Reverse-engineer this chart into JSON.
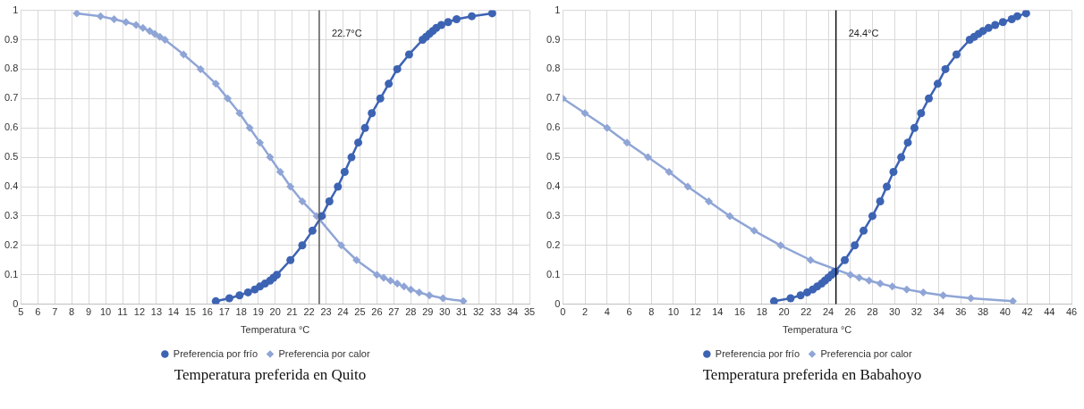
{
  "chart_data": [
    {
      "type": "line",
      "title": "Temperatura preferida en Quito",
      "xlabel": "Temperatura °C",
      "xlim": [
        5,
        35
      ],
      "xticks": [
        5,
        6,
        7,
        8,
        9,
        10,
        11,
        12,
        13,
        14,
        15,
        16,
        17,
        18,
        19,
        20,
        21,
        22,
        23,
        24,
        25,
        26,
        27,
        28,
        29,
        30,
        31,
        32,
        33,
        34,
        35
      ],
      "ylim": [
        0,
        1
      ],
      "yticks": [
        0,
        0.1,
        0.2,
        0.3,
        0.4,
        0.5,
        0.6,
        0.7,
        0.8,
        0.9,
        1
      ],
      "grid": true,
      "legend": "bottom",
      "series": [
        {
          "name": "Preferencia por frío",
          "color": "#3d63b3",
          "marker": "circle",
          "x": [
            16.5,
            17.3,
            17.9,
            18.4,
            18.8,
            19.1,
            19.4,
            19.7,
            19.9,
            20.1,
            20.9,
            21.6,
            22.2,
            22.75,
            23.2,
            23.7,
            24.1,
            24.5,
            24.9,
            25.3,
            25.7,
            26.2,
            26.7,
            27.2,
            27.9,
            28.7,
            28.9,
            29.1,
            29.3,
            29.5,
            29.8,
            30.2,
            30.7,
            31.6,
            32.8
          ],
          "values": [
            0.01,
            0.02,
            0.03,
            0.04,
            0.05,
            0.06,
            0.07,
            0.08,
            0.09,
            0.1,
            0.15,
            0.2,
            0.25,
            0.3,
            0.35,
            0.4,
            0.45,
            0.5,
            0.55,
            0.6,
            0.65,
            0.7,
            0.75,
            0.8,
            0.85,
            0.9,
            0.91,
            0.92,
            0.93,
            0.94,
            0.95,
            0.96,
            0.97,
            0.98,
            0.99
          ]
        },
        {
          "name": "Preferencia por calor",
          "color": "#8fa5d6",
          "marker": "diamond",
          "x": [
            8.3,
            9.7,
            10.5,
            11.2,
            11.8,
            12.2,
            12.6,
            12.9,
            13.2,
            13.5,
            14.6,
            15.6,
            16.5,
            17.2,
            17.9,
            18.5,
            19.1,
            19.7,
            20.3,
            20.9,
            21.6,
            22.45,
            23.9,
            24.8,
            26,
            26.4,
            26.8,
            27.2,
            27.6,
            28,
            28.5,
            29.1,
            29.9,
            31.1
          ],
          "values": [
            0.99,
            0.98,
            0.97,
            0.96,
            0.95,
            0.94,
            0.93,
            0.92,
            0.91,
            0.9,
            0.85,
            0.8,
            0.75,
            0.7,
            0.65,
            0.6,
            0.55,
            0.5,
            0.45,
            0.4,
            0.35,
            0.3,
            0.2,
            0.15,
            0.1,
            0.09,
            0.08,
            0.07,
            0.06,
            0.05,
            0.04,
            0.03,
            0.02,
            0.01
          ]
        }
      ],
      "ref_lines": [
        {
          "axis": "x",
          "value": 22.6,
          "color": "#555555",
          "label": "22.7°C"
        }
      ]
    },
    {
      "type": "line",
      "title": "Temperatura preferida en Babahoyo",
      "xlabel": "Temperatura °C",
      "xlim": [
        0,
        46
      ],
      "xticks": [
        0,
        2,
        4,
        6,
        8,
        10,
        12,
        14,
        16,
        18,
        20,
        22,
        24,
        26,
        28,
        30,
        32,
        34,
        36,
        38,
        40,
        42,
        44,
        46
      ],
      "ylim": [
        0,
        1
      ],
      "yticks": [
        0,
        0.1,
        0.2,
        0.3,
        0.4,
        0.5,
        0.6,
        0.7,
        0.8,
        0.9,
        1
      ],
      "grid": true,
      "legend": "bottom",
      "series": [
        {
          "name": "Preferencia por frío",
          "color": "#3d63b3",
          "marker": "circle",
          "x": [
            19.1,
            20.6,
            21.5,
            22.1,
            22.6,
            23,
            23.4,
            23.7,
            24,
            24.3,
            24.6,
            25.5,
            26.4,
            27.2,
            28,
            28.7,
            29.3,
            29.9,
            30.6,
            31.2,
            31.8,
            32.4,
            33.1,
            33.9,
            34.6,
            35.6,
            36.8,
            37.2,
            37.6,
            38,
            38.5,
            39.1,
            39.8,
            40.6,
            41.1,
            41.9
          ],
          "values": [
            0.01,
            0.02,
            0.03,
            0.04,
            0.05,
            0.06,
            0.07,
            0.08,
            0.09,
            0.1,
            0.11,
            0.15,
            0.2,
            0.25,
            0.3,
            0.35,
            0.4,
            0.45,
            0.5,
            0.55,
            0.6,
            0.65,
            0.7,
            0.75,
            0.8,
            0.85,
            0.9,
            0.91,
            0.92,
            0.93,
            0.94,
            0.95,
            0.96,
            0.97,
            0.98,
            0.99
          ]
        },
        {
          "name": "Preferencia por calor",
          "color": "#8fa5d6",
          "marker": "diamond",
          "x": [
            0,
            2,
            4,
            5.8,
            7.7,
            9.6,
            11.3,
            13.2,
            15.1,
            17.3,
            19.7,
            22.4,
            26,
            26.8,
            27.7,
            28.7,
            29.8,
            31.1,
            32.6,
            34.4,
            36.9,
            40.7
          ],
          "values": [
            0.7,
            0.65,
            0.6,
            0.55,
            0.5,
            0.45,
            0.4,
            0.35,
            0.3,
            0.25,
            0.2,
            0.15,
            0.1,
            0.09,
            0.08,
            0.07,
            0.06,
            0.05,
            0.04,
            0.03,
            0.02,
            0.01
          ]
        }
      ],
      "ref_lines": [
        {
          "axis": "x",
          "value": 24.7,
          "color": "#111111",
          "label": "24.4°C"
        }
      ]
    }
  ]
}
